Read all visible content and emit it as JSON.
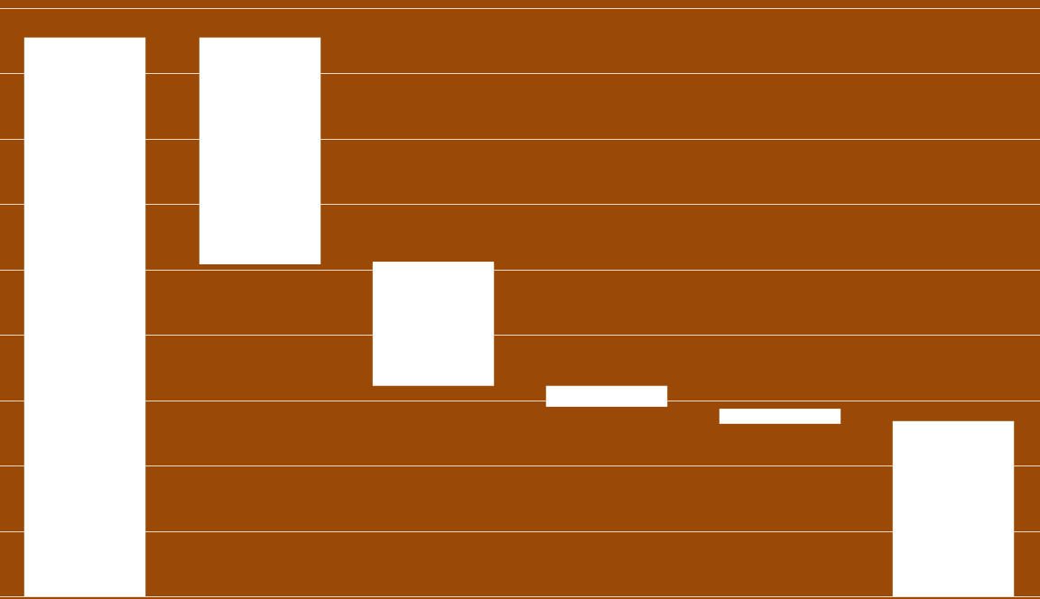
{
  "chart_data": {
    "type": "bar",
    "variant": "waterfall",
    "categories": [
      "",
      "",
      "",
      "",
      "",
      ""
    ],
    "series": [
      {
        "values": [
          {
            "start": 0,
            "end": 8.55
          },
          {
            "start": 8.55,
            "end": 5.08
          },
          {
            "start": 5.12,
            "end": 3.22
          },
          {
            "start": 3.22,
            "end": 2.9
          },
          {
            "start": 2.87,
            "end": 2.64
          },
          {
            "start": 2.68,
            "end": 0
          }
        ]
      }
    ],
    "title": "",
    "xlabel": "",
    "ylabel": "",
    "ylim": [
      0,
      9
    ],
    "y_gridlines": [
      1,
      2,
      3,
      4,
      5,
      6,
      7,
      8,
      9
    ],
    "grid": true,
    "legend": "none",
    "colors": {
      "background": "#9a4a06",
      "bar": "#ffffff",
      "grid": "#f4dcc4"
    }
  }
}
